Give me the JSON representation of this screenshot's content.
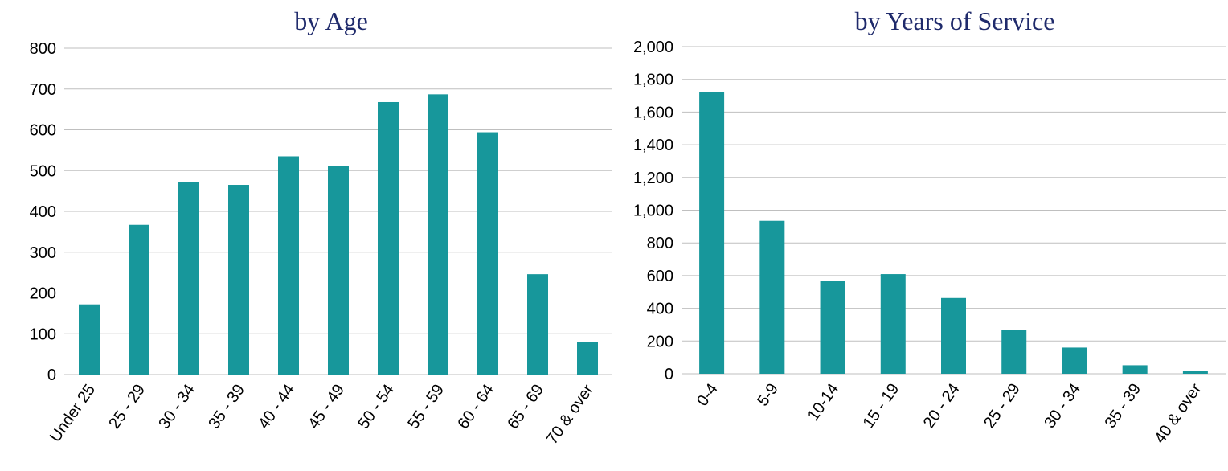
{
  "chart_data": [
    {
      "type": "bar",
      "title": "by Age",
      "xlabel": "",
      "ylabel": "",
      "categories": [
        "Under 25",
        "25 - 29",
        "30 - 34",
        "35 - 39",
        "40 - 44",
        "45 - 49",
        "50 - 54",
        "55 - 59",
        "60 - 64",
        "65 - 69",
        "70 & over"
      ],
      "values": [
        172,
        367,
        472,
        465,
        535,
        511,
        668,
        687,
        594,
        246,
        79
      ],
      "ylim": [
        0,
        800
      ],
      "yticks": [
        "0",
        "100",
        "200",
        "300",
        "400",
        "500",
        "600",
        "700",
        "800"
      ],
      "grid": true,
      "legend": "none",
      "color": "#17979b"
    },
    {
      "type": "bar",
      "title": "by Years of Service",
      "xlabel": "",
      "ylabel": "",
      "categories": [
        "0-4",
        "5-9",
        "10-14",
        "15 - 19",
        "20 - 24",
        "25 - 29",
        "30 - 34",
        "35 - 39",
        "40 & over"
      ],
      "values": [
        1720,
        935,
        567,
        609,
        463,
        270,
        160,
        52,
        18
      ],
      "ylim": [
        0,
        2000
      ],
      "yticks": [
        "0",
        "200",
        "400",
        "600",
        "800",
        "1,000",
        "1,200",
        "1,400",
        "1,600",
        "1,800",
        "2,000"
      ],
      "grid": true,
      "legend": "none",
      "color": "#17979b"
    }
  ]
}
